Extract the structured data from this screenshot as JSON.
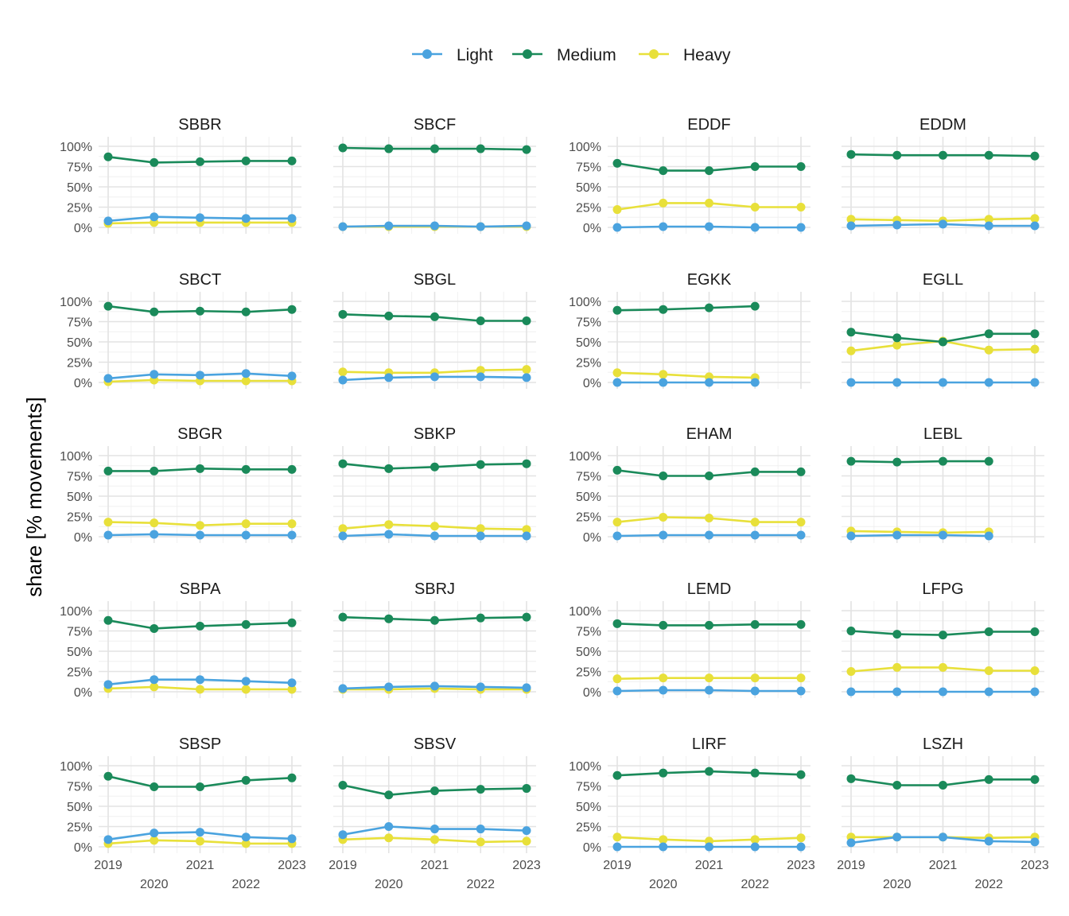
{
  "chart_data": {
    "type": "line",
    "ylabel": "share [% movements]",
    "xlabel": "",
    "x": [
      2019,
      2020,
      2021,
      2022,
      2023
    ],
    "x_tick_labels": [
      "2019",
      "2020",
      "2021",
      "2022",
      "2023"
    ],
    "y_tick_labels": [
      "0%",
      "25%",
      "50%",
      "75%",
      "100%"
    ],
    "ylim": [
      0,
      100
    ],
    "legend": {
      "position": "top",
      "entries": [
        "Light",
        "Medium",
        "Heavy"
      ]
    },
    "colors": {
      "Light": "#4aa3df",
      "Medium": "#1a8a5a",
      "Heavy": "#e8e03a"
    },
    "grid": true,
    "panels": [
      {
        "name": "SBBR",
        "series": {
          "Light": [
            8,
            13,
            12,
            11,
            11
          ],
          "Medium": [
            87,
            80,
            81,
            82,
            82
          ],
          "Heavy": [
            5,
            6,
            6,
            6,
            6
          ]
        }
      },
      {
        "name": "SBCF",
        "series": {
          "Light": [
            1,
            2,
            2,
            1,
            2
          ],
          "Medium": [
            98,
            97,
            97,
            97,
            96
          ],
          "Heavy": [
            1,
            1,
            1,
            1,
            1
          ]
        }
      },
      {
        "name": "EDDF",
        "series": {
          "Light": [
            0,
            1,
            1,
            0,
            0
          ],
          "Medium": [
            79,
            70,
            70,
            75,
            75
          ],
          "Heavy": [
            22,
            30,
            30,
            25,
            25
          ]
        }
      },
      {
        "name": "EDDM",
        "series": {
          "Light": [
            2,
            3,
            4,
            2,
            2
          ],
          "Medium": [
            90,
            89,
            89,
            89,
            88
          ],
          "Heavy": [
            10,
            9,
            8,
            10,
            11
          ]
        }
      },
      {
        "name": "SBCT",
        "series": {
          "Light": [
            5,
            10,
            9,
            11,
            8
          ],
          "Medium": [
            94,
            87,
            88,
            87,
            90
          ],
          "Heavy": [
            1,
            3,
            2,
            2,
            2
          ]
        }
      },
      {
        "name": "SBGL",
        "series": {
          "Light": [
            3,
            6,
            7,
            7,
            6
          ],
          "Medium": [
            84,
            82,
            81,
            76,
            76
          ],
          "Heavy": [
            13,
            12,
            12,
            15,
            16
          ]
        }
      },
      {
        "name": "EGKK",
        "series": {
          "Light": [
            0,
            0,
            0,
            0,
            null
          ],
          "Medium": [
            89,
            90,
            92,
            94,
            null
          ],
          "Heavy": [
            12,
            10,
            7,
            6,
            null
          ]
        }
      },
      {
        "name": "EGLL",
        "series": {
          "Light": [
            0,
            0,
            0,
            0,
            0
          ],
          "Medium": [
            62,
            55,
            50,
            60,
            60
          ],
          "Heavy": [
            39,
            46,
            51,
            40,
            41
          ]
        }
      },
      {
        "name": "SBGR",
        "series": {
          "Light": [
            2,
            3,
            2,
            2,
            2
          ],
          "Medium": [
            81,
            81,
            84,
            83,
            83
          ],
          "Heavy": [
            18,
            17,
            14,
            16,
            16
          ]
        }
      },
      {
        "name": "SBKP",
        "series": {
          "Light": [
            1,
            3,
            1,
            1,
            1
          ],
          "Medium": [
            90,
            84,
            86,
            89,
            90
          ],
          "Heavy": [
            10,
            15,
            13,
            10,
            9
          ]
        }
      },
      {
        "name": "EHAM",
        "series": {
          "Light": [
            1,
            2,
            2,
            2,
            2
          ],
          "Medium": [
            82,
            75,
            75,
            80,
            80
          ],
          "Heavy": [
            18,
            24,
            23,
            18,
            18
          ]
        }
      },
      {
        "name": "LEBL",
        "series": {
          "Light": [
            1,
            2,
            2,
            1,
            null
          ],
          "Medium": [
            93,
            92,
            93,
            93,
            null
          ],
          "Heavy": [
            7,
            6,
            5,
            6,
            null
          ]
        }
      },
      {
        "name": "SBPA",
        "series": {
          "Light": [
            9,
            15,
            15,
            13,
            11
          ],
          "Medium": [
            88,
            78,
            81,
            83,
            85
          ],
          "Heavy": [
            4,
            6,
            3,
            3,
            3
          ]
        }
      },
      {
        "name": "SBRJ",
        "series": {
          "Light": [
            4,
            6,
            7,
            6,
            5
          ],
          "Medium": [
            92,
            90,
            88,
            91,
            92
          ],
          "Heavy": [
            3,
            3,
            4,
            3,
            3
          ]
        }
      },
      {
        "name": "LEMD",
        "series": {
          "Light": [
            1,
            2,
            2,
            1,
            1
          ],
          "Medium": [
            84,
            82,
            82,
            83,
            83
          ],
          "Heavy": [
            16,
            17,
            17,
            17,
            17
          ]
        }
      },
      {
        "name": "LFPG",
        "series": {
          "Light": [
            0,
            0,
            0,
            0,
            0
          ],
          "Medium": [
            75,
            71,
            70,
            74,
            74
          ],
          "Heavy": [
            25,
            30,
            30,
            26,
            26
          ]
        }
      },
      {
        "name": "SBSP",
        "series": {
          "Light": [
            9,
            17,
            18,
            12,
            10
          ],
          "Medium": [
            87,
            74,
            74,
            82,
            85
          ],
          "Heavy": [
            4,
            8,
            7,
            4,
            4
          ]
        }
      },
      {
        "name": "SBSV",
        "series": {
          "Light": [
            15,
            25,
            22,
            22,
            20
          ],
          "Medium": [
            76,
            64,
            69,
            71,
            72
          ],
          "Heavy": [
            9,
            11,
            9,
            6,
            7
          ]
        }
      },
      {
        "name": "LIRF",
        "series": {
          "Light": [
            0,
            0,
            0,
            0,
            0
          ],
          "Medium": [
            88,
            91,
            93,
            91,
            89
          ],
          "Heavy": [
            12,
            9,
            7,
            9,
            11
          ]
        }
      },
      {
        "name": "LSZH",
        "series": {
          "Light": [
            5,
            12,
            12,
            7,
            6
          ],
          "Medium": [
            84,
            76,
            76,
            83,
            83
          ],
          "Heavy": [
            12,
            12,
            12,
            11,
            12
          ]
        }
      }
    ]
  }
}
